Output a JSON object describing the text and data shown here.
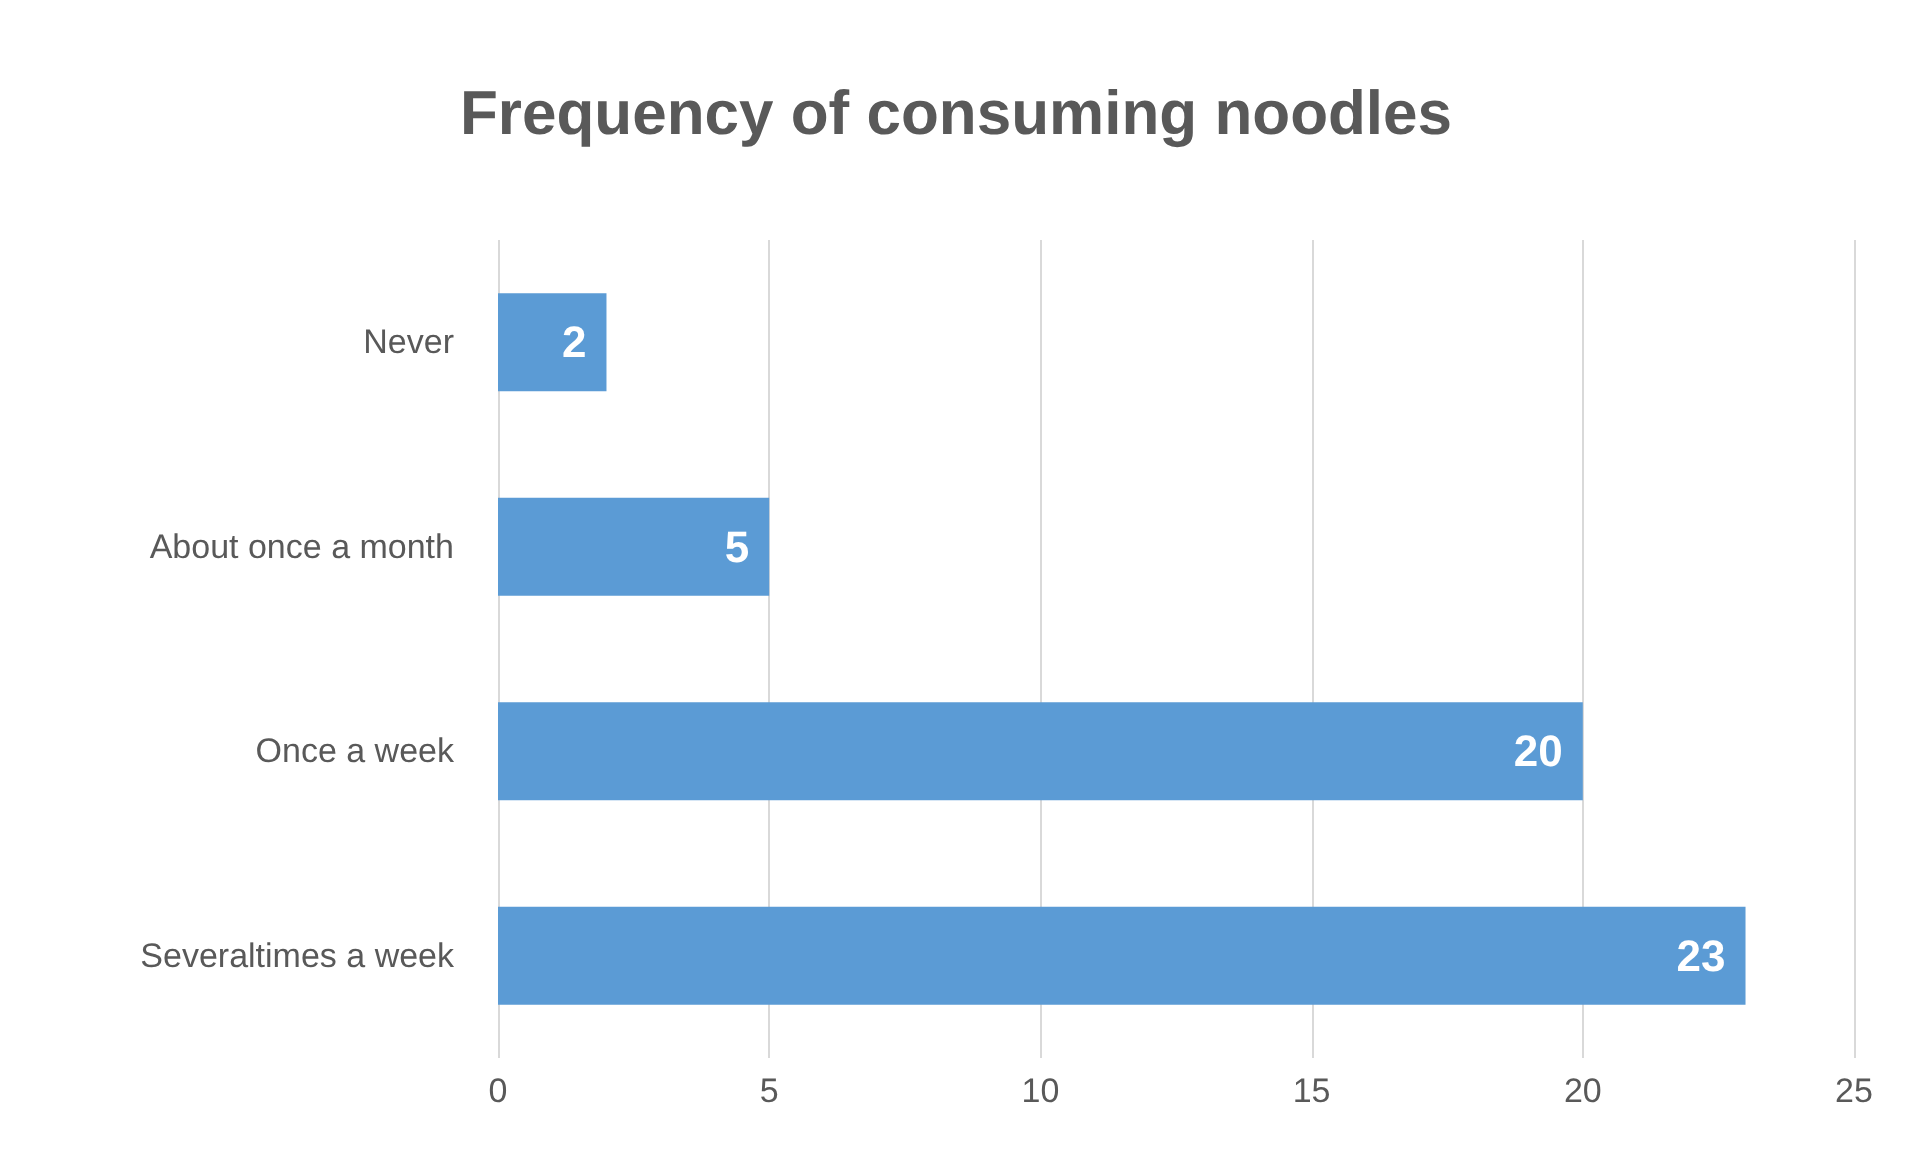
{
  "chart_data": {
    "type": "bar",
    "orientation": "horizontal",
    "title": "Frequency of consuming noodles",
    "categories": [
      "Never",
      "About once a month",
      "Once a week",
      "Severaltimes a week"
    ],
    "values": [
      2,
      5,
      20,
      23
    ],
    "color": "#5b9bd5",
    "xlim": [
      0,
      25
    ],
    "xticks": [
      0,
      5,
      10,
      15,
      20,
      25
    ],
    "grid": "x",
    "data_labels": true
  }
}
